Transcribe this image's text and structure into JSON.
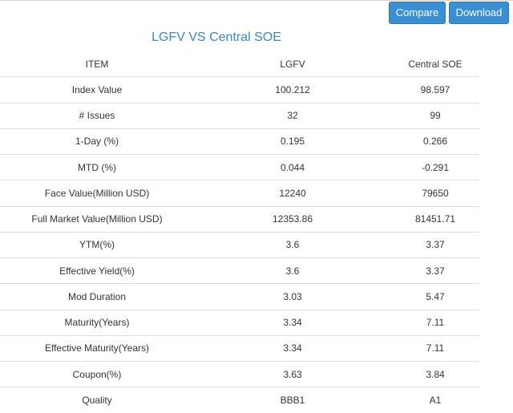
{
  "toolbar": {
    "compare_label": "Compare",
    "download_label": "Download"
  },
  "title": "LGFV VS Central SOE",
  "table": {
    "headers": [
      "ITEM",
      "LGFV",
      "Central SOE"
    ],
    "rows": [
      [
        "Index Value",
        "100.212",
        "98.597"
      ],
      [
        "# Issues",
        "32",
        "99"
      ],
      [
        "1-Day (%)",
        "0.195",
        "0.266"
      ],
      [
        "MTD (%)",
        "0.044",
        "-0.291"
      ],
      [
        "Face Value(Million USD)",
        "12240",
        "79650"
      ],
      [
        "Full Market Value(Million USD)",
        "12353.86",
        "81451.71"
      ],
      [
        "YTM(%)",
        "3.6",
        "3.37"
      ],
      [
        "Effective Yield(%)",
        "3.6",
        "3.37"
      ],
      [
        "Mod Duration",
        "3.03",
        "5.47"
      ],
      [
        "Maturity(Years)",
        "3.34",
        "7.11"
      ],
      [
        "Effective Maturity(Years)",
        "3.34",
        "7.11"
      ],
      [
        "Coupon(%)",
        "3.63",
        "3.84"
      ],
      [
        "Quality",
        "BBB1",
        "A1"
      ]
    ]
  },
  "colors": {
    "button": "#3a8ed2",
    "title": "#3a86c8",
    "row_border": "#dddddd"
  }
}
